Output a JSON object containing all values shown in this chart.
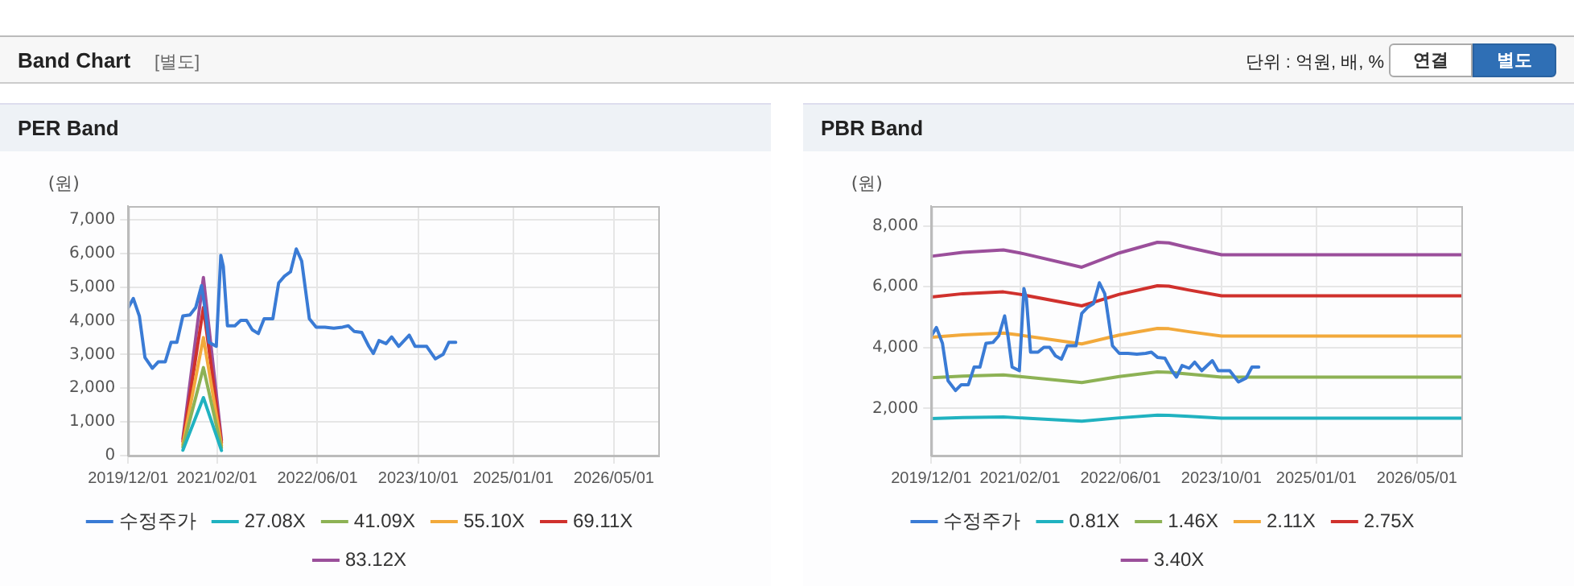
{
  "chart_data": [
    {
      "type": "other",
      "title": "Band Chart",
      "annotations": [
        "[별도]",
        "단위 : 억원, 배, %",
        "연결",
        "별도"
      ]
    },
    {
      "type": "line",
      "title": "PER Band",
      "ylabel": "(원)",
      "grid": true,
      "legend": "bottom",
      "marker": "none",
      "line_style": "solid",
      "xlim": [
        "2019-12-01",
        "2026-12-01"
      ],
      "xticks": [
        {
          "value": "2019-12-01",
          "label": "2019/12/01"
        },
        {
          "value": "2021-02-01",
          "label": "2021/02/01"
        },
        {
          "value": "2022-06-01",
          "label": "2022/06/01"
        },
        {
          "value": "2023-10-01",
          "label": "2023/10/01"
        },
        {
          "value": "2025-01-01",
          "label": "2025/01/01"
        },
        {
          "value": "2026-05-01",
          "label": "2026/05/01"
        }
      ],
      "ylim": [
        0,
        7400
      ],
      "yticks": [
        0,
        {
          "value": 1000,
          "label": "1,000"
        },
        {
          "value": 2000,
          "label": "2,000"
        },
        {
          "value": 3000,
          "label": "3,000"
        },
        {
          "value": 4000,
          "label": "4,000"
        },
        {
          "value": 5000,
          "label": "5,000"
        },
        {
          "value": 6000,
          "label": "6,000"
        },
        {
          "value": 7000,
          "label": "7,000"
        }
      ],
      "series": [
        {
          "name": "수정주가",
          "color": "#3a7bd5",
          "x": [
            "2019-12-01",
            "2019-12-26",
            "2020-01-24",
            "2020-02-20",
            "2020-03-27",
            "2020-04-24",
            "2020-05-28",
            "2020-06-25",
            "2020-07-23",
            "2020-08-21",
            "2020-09-24",
            "2020-10-22",
            "2020-11-19",
            "2020-12-05",
            "2020-12-25",
            "2021-01-29",
            "2021-02-20",
            "2021-03-04",
            "2021-03-24",
            "2021-04-29",
            "2021-05-27",
            "2021-06-24",
            "2021-07-22",
            "2021-08-20",
            "2021-09-17",
            "2021-10-29",
            "2021-11-26",
            "2021-12-24",
            "2022-01-22",
            "2022-02-19",
            "2022-03-17",
            "2022-04-23",
            "2022-05-26",
            "2022-07-07",
            "2022-08-19",
            "2022-09-30",
            "2022-10-28",
            "2022-11-26",
            "2023-01-01",
            "2023-02-04",
            "2023-02-26",
            "2023-03-25",
            "2023-04-28",
            "2023-05-25",
            "2023-06-28",
            "2023-08-18",
            "2023-09-15",
            "2023-11-10",
            "2023-12-22",
            "2024-01-28",
            "2024-02-25",
            "2024-03-29"
          ],
          "values": [
            4380,
            4660,
            4140,
            2910,
            2590,
            2780,
            2780,
            3360,
            3360,
            4140,
            4170,
            4390,
            5040,
            4390,
            3360,
            3240,
            5940,
            5610,
            3850,
            3850,
            4010,
            4010,
            3730,
            3620,
            4060,
            4060,
            5120,
            5320,
            5450,
            6130,
            5770,
            4060,
            3810,
            3810,
            3780,
            3810,
            3850,
            3680,
            3650,
            3240,
            3030,
            3410,
            3320,
            3520,
            3240,
            3570,
            3240,
            3240,
            2870,
            3000,
            3360,
            3360
          ]
        },
        {
          "name": "27.08X",
          "color": "#20b2c0",
          "x": [
            "2020-08-21",
            "2020-11-28",
            "2021-02-23"
          ],
          "values": [
            160,
            1720,
            150
          ]
        },
        {
          "name": "41.09X",
          "color": "#8db255",
          "x": [
            "2020-08-21",
            "2020-11-28",
            "2021-02-23"
          ],
          "values": [
            250,
            2610,
            230
          ]
        },
        {
          "name": "55.10X",
          "color": "#f2a93b",
          "x": [
            "2020-08-21",
            "2020-11-28",
            "2021-02-23"
          ],
          "values": [
            330,
            3500,
            300
          ]
        },
        {
          "name": "69.11X",
          "color": "#d0312d",
          "x": [
            "2020-08-21",
            "2020-11-28",
            "2021-02-23"
          ],
          "values": [
            420,
            4390,
            380
          ]
        },
        {
          "name": "83.12X",
          "color": "#9b4f9b",
          "x": [
            "2020-08-21",
            "2020-11-28",
            "2021-02-23"
          ],
          "values": [
            500,
            5280,
            460
          ]
        }
      ]
    },
    {
      "type": "line",
      "title": "PBR Band",
      "ylabel": "(원)",
      "grid": true,
      "legend": "bottom",
      "marker": "none",
      "line_style": "solid",
      "xlim": [
        "2019-12-01",
        "2026-12-01"
      ],
      "xticks": [
        {
          "value": "2019-12-01",
          "label": "2019/12/01"
        },
        {
          "value": "2021-02-01",
          "label": "2021/02/01"
        },
        {
          "value": "2022-06-01",
          "label": "2022/06/01"
        },
        {
          "value": "2023-10-01",
          "label": "2023/10/01"
        },
        {
          "value": "2025-01-01",
          "label": "2025/01/01"
        },
        {
          "value": "2026-05-01",
          "label": "2026/05/01"
        }
      ],
      "ylim": [
        450,
        8650
      ],
      "yticks": [
        {
          "value": 2000,
          "label": "2,000"
        },
        {
          "value": 4000,
          "label": "4,000"
        },
        {
          "value": 6000,
          "label": "6,000"
        },
        {
          "value": 8000,
          "label": "8,000"
        }
      ],
      "series": [
        {
          "name": "수정주가",
          "color": "#3a7bd5",
          "x": [
            "2019-12-01",
            "2019-12-26",
            "2020-01-24",
            "2020-02-20",
            "2020-03-27",
            "2020-04-24",
            "2020-05-28",
            "2020-06-25",
            "2020-07-23",
            "2020-08-21",
            "2020-09-24",
            "2020-10-22",
            "2020-11-19",
            "2020-12-05",
            "2020-12-25",
            "2021-01-29",
            "2021-02-20",
            "2021-03-04",
            "2021-03-24",
            "2021-04-29",
            "2021-05-27",
            "2021-06-24",
            "2021-07-22",
            "2021-08-20",
            "2021-09-17",
            "2021-10-29",
            "2021-11-26",
            "2021-12-24",
            "2022-01-22",
            "2022-02-19",
            "2022-03-17",
            "2022-04-23",
            "2022-05-26",
            "2022-07-07",
            "2022-08-19",
            "2022-09-30",
            "2022-10-28",
            "2022-11-26",
            "2023-01-01",
            "2023-02-04",
            "2023-02-26",
            "2023-03-25",
            "2023-04-28",
            "2023-05-25",
            "2023-06-28",
            "2023-08-18",
            "2023-09-15",
            "2023-11-10",
            "2023-12-22",
            "2024-01-28",
            "2024-02-25",
            "2024-03-29"
          ],
          "values": [
            4380,
            4660,
            4140,
            2910,
            2590,
            2780,
            2780,
            3360,
            3360,
            4140,
            4170,
            4390,
            5040,
            4390,
            3360,
            3240,
            5940,
            5610,
            3850,
            3850,
            4010,
            4010,
            3730,
            3620,
            4060,
            4060,
            5120,
            5320,
            5450,
            6130,
            5770,
            4060,
            3810,
            3810,
            3780,
            3810,
            3850,
            3680,
            3650,
            3240,
            3030,
            3410,
            3320,
            3520,
            3240,
            3570,
            3240,
            3240,
            2870,
            3000,
            3360,
            3360
          ]
        },
        {
          "name": "0.81X",
          "color": "#20b2c0",
          "x": [
            "2019-12-01",
            "2020-05-01",
            "2020-11-13",
            "2021-02-01",
            "2021-11-26",
            "2022-05-26",
            "2022-11-26",
            "2023-01-20",
            "2023-04-28",
            "2023-10-01",
            "2026-12-01"
          ],
          "values": [
            1670,
            1700,
            1720,
            1690,
            1580,
            1690,
            1780,
            1770,
            1740,
            1680,
            1680
          ]
        },
        {
          "name": "1.46X",
          "color": "#8db255",
          "x": [
            "2019-12-01",
            "2020-05-01",
            "2020-11-13",
            "2021-02-01",
            "2021-11-26",
            "2022-05-26",
            "2022-11-26",
            "2023-01-20",
            "2023-04-28",
            "2023-10-01",
            "2026-12-01"
          ],
          "values": [
            3010,
            3060,
            3100,
            3050,
            2850,
            3050,
            3200,
            3190,
            3130,
            3030,
            3030
          ]
        },
        {
          "name": "2.11X",
          "color": "#f2a93b",
          "x": [
            "2019-12-01",
            "2020-05-01",
            "2020-11-13",
            "2021-02-01",
            "2021-11-26",
            "2022-05-26",
            "2022-11-26",
            "2023-01-20",
            "2023-04-28",
            "2023-10-01",
            "2026-12-01"
          ],
          "values": [
            4340,
            4420,
            4480,
            4410,
            4120,
            4410,
            4630,
            4620,
            4520,
            4380,
            4380
          ]
        },
        {
          "name": "2.75X",
          "color": "#d0312d",
          "x": [
            "2019-12-01",
            "2020-05-01",
            "2020-11-13",
            "2021-02-01",
            "2021-11-26",
            "2022-05-26",
            "2022-11-26",
            "2023-01-20",
            "2023-04-28",
            "2023-10-01",
            "2026-12-01"
          ],
          "values": [
            5660,
            5770,
            5830,
            5750,
            5370,
            5750,
            6030,
            6020,
            5890,
            5700,
            5700
          ]
        },
        {
          "name": "3.40X",
          "color": "#9b4f9b",
          "x": [
            "2019-12-01",
            "2020-05-01",
            "2020-11-13",
            "2021-02-01",
            "2021-11-26",
            "2022-05-26",
            "2022-11-26",
            "2023-01-20",
            "2023-04-28",
            "2023-10-01",
            "2026-12-01"
          ],
          "values": [
            7000,
            7130,
            7210,
            7110,
            6640,
            7110,
            7460,
            7440,
            7280,
            7050,
            7050
          ]
        }
      ]
    }
  ]
}
